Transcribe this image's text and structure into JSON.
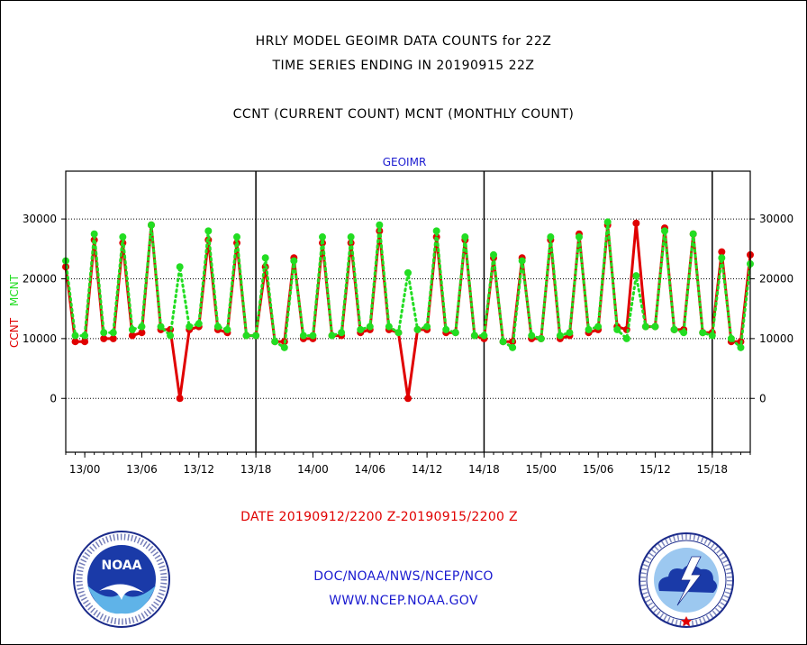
{
  "header": {
    "title1": "HRLY MODEL GEOIMR DATA COUNTS for 22Z",
    "title2": "TIME SERIES ENDING IN 20190915 22Z",
    "subtitle": "CCNT (CURRENT COUNT) MCNT (MONTHLY COUNT)"
  },
  "footer": {
    "date_range": "DATE 20190912/2200 Z-20190915/2200 Z",
    "org": "DOC/NOAA/NWS/NCEP/NCO",
    "url": "WWW.NCEP.NOAA.GOV"
  },
  "logos": {
    "left_name": "noaa-logo",
    "left_text": "NOAA",
    "right_name": "nws-logo"
  },
  "colors": {
    "ccnt": "#e00000",
    "mcnt": "#22dd22",
    "frame": "#000000",
    "axis_text": "#000000"
  },
  "chart_data": {
    "type": "line",
    "title": "GEOIMR",
    "ylabel_ccnt": "CCNT",
    "ylabel_mcnt": "MCNT",
    "x_unit": "hours since 20190912/2200 Z",
    "x_tick_labels": [
      "13/00",
      "13/06",
      "13/12",
      "13/18",
      "14/00",
      "14/06",
      "14/12",
      "14/18",
      "15/00",
      "15/06",
      "15/12",
      "15/18"
    ],
    "x_tick_hours": [
      2,
      8,
      14,
      20,
      26,
      32,
      38,
      44,
      50,
      56,
      62,
      68
    ],
    "day_separators_hours": [
      20,
      44,
      68
    ],
    "y_ticks": [
      0,
      10000,
      20000,
      30000
    ],
    "ylim": [
      -9000,
      38000
    ],
    "xlim": [
      0,
      72
    ],
    "grid": "dotted at y ticks",
    "series": [
      {
        "name": "CCNT",
        "color": "#e00000",
        "x": [
          0,
          1,
          2,
          3,
          4,
          5,
          6,
          7,
          8,
          9,
          10,
          11,
          12,
          13,
          14,
          15,
          16,
          17,
          18,
          19,
          20,
          21,
          22,
          23,
          24,
          25,
          26,
          27,
          28,
          29,
          30,
          31,
          32,
          33,
          34,
          35,
          36,
          37,
          38,
          39,
          40,
          41,
          42,
          43,
          44,
          45,
          46,
          47,
          48,
          49,
          50,
          51,
          52,
          53,
          54,
          55,
          56,
          57,
          58,
          59,
          60,
          61,
          62,
          63,
          64,
          65,
          66,
          67,
          68,
          69,
          70,
          71,
          72
        ],
        "values": [
          22000,
          9500,
          9500,
          26500,
          10000,
          10000,
          26000,
          10500,
          11000,
          29000,
          11500,
          11500,
          0,
          11500,
          12000,
          26500,
          11500,
          11000,
          26000,
          10500,
          10500,
          22000,
          9500,
          9500,
          23500,
          10000,
          10000,
          26000,
          10500,
          10500,
          26000,
          11000,
          11500,
          28000,
          11500,
          11000,
          0,
          11500,
          11500,
          27000,
          11000,
          11000,
          26500,
          10500,
          10000,
          23500,
          9500,
          9500,
          23500,
          10000,
          10000,
          26500,
          10000,
          10500,
          27500,
          11000,
          11500,
          29000,
          12000,
          11500,
          29300,
          12000,
          12000,
          28500,
          11500,
          11500,
          27500,
          11000,
          11000,
          24500,
          9500,
          9500,
          24000
        ]
      },
      {
        "name": "MCNT",
        "color": "#22dd22",
        "x": [
          0,
          1,
          2,
          3,
          4,
          5,
          6,
          7,
          8,
          9,
          10,
          11,
          12,
          13,
          14,
          15,
          16,
          17,
          18,
          19,
          20,
          21,
          22,
          23,
          24,
          25,
          26,
          27,
          28,
          29,
          30,
          31,
          32,
          33,
          34,
          35,
          36,
          37,
          38,
          39,
          40,
          41,
          42,
          43,
          44,
          45,
          46,
          47,
          48,
          49,
          50,
          51,
          52,
          53,
          54,
          55,
          56,
          57,
          58,
          59,
          60,
          61,
          62,
          63,
          64,
          65,
          66,
          67,
          68,
          69,
          70,
          71,
          72
        ],
        "values": [
          23000,
          10500,
          10500,
          27500,
          11000,
          11000,
          27000,
          11500,
          12000,
          29000,
          12000,
          10500,
          22000,
          12000,
          12500,
          28000,
          12000,
          11500,
          27000,
          10500,
          10500,
          23500,
          9500,
          8500,
          23000,
          10500,
          10500,
          27000,
          10500,
          11000,
          27000,
          11500,
          12000,
          29000,
          12000,
          11000,
          21000,
          11500,
          12000,
          28000,
          11500,
          11000,
          27000,
          10500,
          10500,
          24000,
          9500,
          8500,
          23000,
          10500,
          10000,
          27000,
          10500,
          11000,
          27000,
          11500,
          12000,
          29500,
          11500,
          10000,
          20500,
          12000,
          12000,
          28000,
          11500,
          11000,
          27500,
          11000,
          10500,
          23500,
          10000,
          8500,
          22500
        ]
      }
    ]
  }
}
